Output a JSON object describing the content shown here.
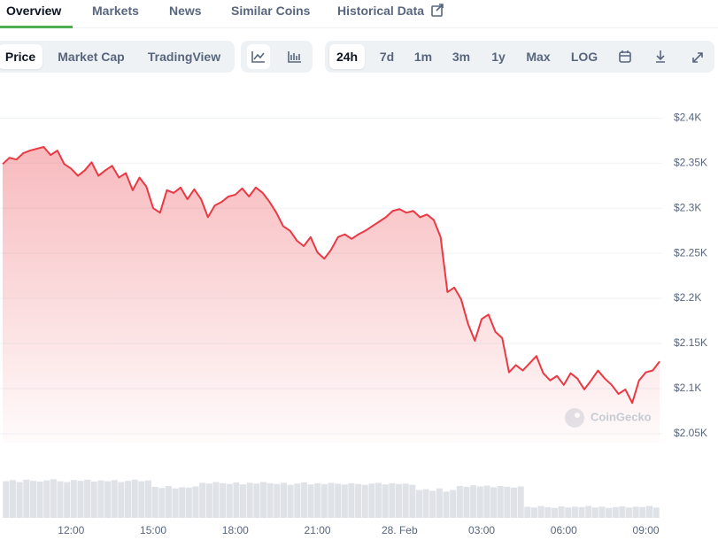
{
  "tabs": [
    "Overview",
    "Markets",
    "News",
    "Similar Coins",
    "Historical Data"
  ],
  "chart_types": [
    "Price",
    "Market Cap",
    "TradingView"
  ],
  "ranges": [
    "24h",
    "7d",
    "1m",
    "3m",
    "1y",
    "Max",
    "LOG"
  ],
  "watermark": "CoinGecko",
  "chart_data": {
    "type": "area",
    "categories": [
      null,
      null,
      null,
      null,
      null,
      null,
      null,
      null,
      null,
      null,
      "12:00",
      null,
      null,
      null,
      null,
      null,
      null,
      null,
      null,
      null,
      null,
      null,
      "15:00",
      null,
      null,
      null,
      null,
      null,
      null,
      null,
      null,
      null,
      null,
      null,
      "18:00",
      null,
      null,
      null,
      null,
      null,
      null,
      null,
      null,
      null,
      null,
      null,
      "21:00",
      null,
      null,
      null,
      null,
      null,
      null,
      null,
      null,
      null,
      null,
      null,
      "28. Feb",
      null,
      null,
      null,
      null,
      null,
      null,
      null,
      null,
      null,
      null,
      null,
      "03:00",
      null,
      null,
      null,
      null,
      null,
      null,
      null,
      null,
      null,
      null,
      null,
      "06:00",
      null,
      null,
      null,
      null,
      null,
      null,
      null,
      null,
      null,
      null,
      null,
      "09:00",
      null,
      null
    ],
    "values": [
      2349,
      2356,
      2354,
      2361,
      2364,
      2366,
      2368,
      2359,
      2364,
      2349,
      2344,
      2336,
      2342,
      2351,
      2336,
      2342,
      2347,
      2334,
      2339,
      2320,
      2334,
      2324,
      2300,
      2295,
      2320,
      2317,
      2323,
      2310,
      2321,
      2310,
      2290,
      2303,
      2307,
      2313,
      2315,
      2322,
      2313,
      2323,
      2317,
      2307,
      2295,
      2280,
      2275,
      2264,
      2258,
      2268,
      2251,
      2244,
      2254,
      2268,
      2271,
      2266,
      2271,
      2275,
      2280,
      2285,
      2290,
      2297,
      2299,
      2295,
      2297,
      2290,
      2293,
      2287,
      2268,
      2207,
      2212,
      2199,
      2172,
      2153,
      2177,
      2182,
      2163,
      2156,
      2118,
      2126,
      2120,
      2128,
      2136,
      2117,
      2109,
      2114,
      2104,
      2117,
      2111,
      2099,
      2109,
      2120,
      2111,
      2104,
      2094,
      2099,
      2084,
      2109,
      2118,
      2120,
      2130
    ],
    "color": "#ea3943",
    "ylim": [
      2040,
      2420
    ],
    "yticks": [
      {
        "value": 2050,
        "label": "$2.05K"
      },
      {
        "value": 2100,
        "label": "$2.1K"
      },
      {
        "value": 2150,
        "label": "$2.15K"
      },
      {
        "value": 2200,
        "label": "$2.2K"
      },
      {
        "value": 2250,
        "label": "$2.25K"
      },
      {
        "value": 2300,
        "label": "$2.3K"
      },
      {
        "value": 2350,
        "label": "$2.35K"
      },
      {
        "value": 2400,
        "label": "$2.4K"
      }
    ],
    "grid": true,
    "volume": {
      "color": "#dfe3e8",
      "ylim": [
        0,
        100
      ],
      "values": [
        92,
        95,
        90,
        96,
        93,
        91,
        94,
        97,
        92,
        90,
        95,
        93,
        96,
        91,
        94,
        92,
        95,
        90,
        93,
        96,
        92,
        94,
        78,
        75,
        80,
        74,
        77,
        76,
        79,
        88,
        86,
        90,
        87,
        85,
        89,
        84,
        88,
        86,
        90,
        87,
        85,
        88,
        83,
        86,
        89,
        84,
        87,
        85,
        88,
        86,
        84,
        87,
        85,
        83,
        86,
        88,
        84,
        87,
        85,
        86,
        83,
        70,
        72,
        68,
        74,
        66,
        70,
        80,
        78,
        82,
        79,
        81,
        77,
        80,
        78,
        76,
        79,
        28,
        26,
        30,
        27,
        25,
        29,
        26,
        28,
        27,
        30,
        26,
        28,
        25,
        27,
        29,
        26,
        28,
        27,
        30,
        26
      ]
    }
  }
}
